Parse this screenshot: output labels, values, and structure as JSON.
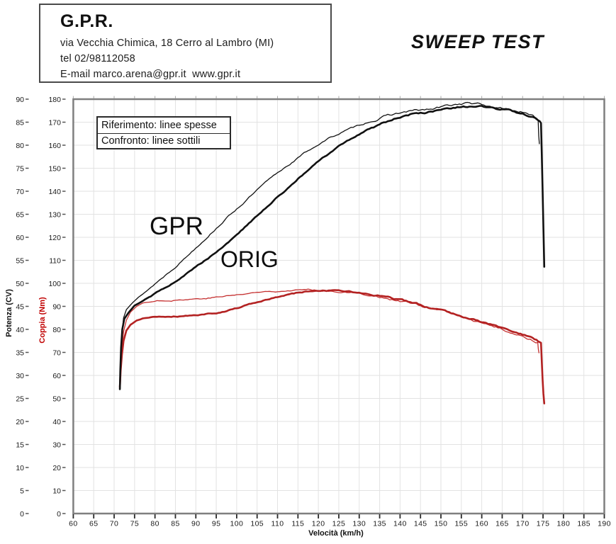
{
  "header": {
    "company": "G.P.R.",
    "address": "via Vecchia Chimica, 18 Cerro al Lambro (MI)",
    "phone": "tel 02/98112058",
    "email_web": "E-mail marco.arena@gpr.it  www.gpr.it"
  },
  "title": "SWEEP TEST",
  "legend": {
    "rows": [
      "Riferimento: linee spesse",
      "Confronto: linee sottili"
    ]
  },
  "annotations": [
    {
      "text": "GPR"
    },
    {
      "text": "ORIG"
    }
  ],
  "chart_data": {
    "type": "line",
    "title": "SWEEP TEST",
    "xlabel": "Velocità (km/h)",
    "ylabel_power": "Potenza (CV)",
    "ylabel_torque": "Coppia (Nm)",
    "x_axis": {
      "range": [
        60,
        190
      ],
      "tick_step": 5,
      "ticks": [
        60,
        65,
        70,
        75,
        80,
        85,
        90,
        95,
        100,
        105,
        110,
        115,
        120,
        125,
        130,
        135,
        140,
        145,
        150,
        155,
        160,
        165,
        170,
        175,
        180,
        185,
        190
      ]
    },
    "power_axis": {
      "range": [
        0,
        90
      ],
      "tick_step": 5,
      "ticks": [
        0,
        5,
        10,
        15,
        20,
        25,
        30,
        35,
        40,
        45,
        50,
        55,
        60,
        65,
        70,
        75,
        80,
        85,
        90
      ]
    },
    "torque_axis": {
      "range": [
        0,
        180
      ],
      "tick_step": 10,
      "ticks": [
        0,
        10,
        20,
        30,
        40,
        50,
        60,
        70,
        80,
        90,
        100,
        110,
        120,
        130,
        140,
        150,
        160,
        170,
        180
      ]
    },
    "grid": true,
    "colors": {
      "power": "#111111",
      "torque": "#b32222",
      "torque_thin": "#c53030",
      "grid": "#e2e2e2",
      "frame": "#7f7f7f"
    },
    "series": [
      {
        "name": "power-reference-orig",
        "label": "ORIG",
        "unit": "CV",
        "axis": "power",
        "style": "thick",
        "points": [
          [
            71.4,
            27
          ],
          [
            71.5,
            31
          ],
          [
            71.7,
            36
          ],
          [
            72.0,
            40
          ],
          [
            72.5,
            42.3
          ],
          [
            73.5,
            43.6
          ],
          [
            75,
            45.2
          ],
          [
            77,
            46.2
          ],
          [
            79,
            47.2
          ],
          [
            81,
            48.3
          ],
          [
            83,
            49.4
          ],
          [
            85,
            50.5
          ],
          [
            87,
            51.7
          ],
          [
            89,
            52.9
          ],
          [
            91,
            54.2
          ],
          [
            93,
            55.5
          ],
          [
            95,
            56.9
          ],
          [
            97,
            58.3
          ],
          [
            99,
            59.8
          ],
          [
            101,
            61.4
          ],
          [
            103,
            63.0
          ],
          [
            105,
            64.6
          ],
          [
            107,
            66.2
          ],
          [
            109,
            67.9
          ],
          [
            111,
            69.5
          ],
          [
            113,
            71.1
          ],
          [
            115,
            72.7
          ],
          [
            117,
            74.2
          ],
          [
            119,
            75.7
          ],
          [
            121,
            77.1
          ],
          [
            123,
            78.4
          ],
          [
            125,
            79.7
          ],
          [
            127,
            80.9
          ],
          [
            129,
            81.9
          ],
          [
            131,
            82.9
          ],
          [
            133,
            83.8
          ],
          [
            135,
            84.6
          ],
          [
            137,
            85.3
          ],
          [
            139,
            85.9
          ],
          [
            141,
            86.4
          ],
          [
            143,
            86.8
          ],
          [
            145,
            87.0
          ],
          [
            147,
            87.2
          ],
          [
            149,
            87.4
          ],
          [
            151,
            87.7
          ],
          [
            153,
            87.9
          ],
          [
            155,
            88.1
          ],
          [
            157,
            88.3
          ],
          [
            158.5,
            88.5
          ],
          [
            160,
            88.3
          ],
          [
            162,
            88.0
          ],
          [
            164,
            87.7
          ],
          [
            166,
            87.5
          ],
          [
            168,
            87.3
          ],
          [
            170,
            86.9
          ],
          [
            171.5,
            86.4
          ],
          [
            173,
            85.8
          ],
          [
            174.2,
            85.2
          ],
          [
            174.5,
            84.8
          ],
          [
            174.7,
            78
          ],
          [
            174.9,
            70
          ],
          [
            175.1,
            62
          ],
          [
            175.3,
            53.6
          ]
        ]
      },
      {
        "name": "power-comparison-gpr",
        "label": "GPR",
        "unit": "CV",
        "axis": "power",
        "style": "thin",
        "points": [
          [
            71.45,
            27.5
          ],
          [
            71.6,
            33
          ],
          [
            71.9,
            39
          ],
          [
            72.3,
            42.5
          ],
          [
            73,
            44.3
          ],
          [
            74.5,
            45.8
          ],
          [
            76,
            47.0
          ],
          [
            78,
            48.4
          ],
          [
            80,
            49.9
          ],
          [
            82,
            51.4
          ],
          [
            84,
            52.9
          ],
          [
            86,
            54.5
          ],
          [
            88,
            56.1
          ],
          [
            90,
            57.8
          ],
          [
            92,
            59.5
          ],
          [
            94,
            61.2
          ],
          [
            96,
            62.9
          ],
          [
            98,
            64.6
          ],
          [
            100,
            66.2
          ],
          [
            102,
            67.8
          ],
          [
            104,
            69.4
          ],
          [
            106,
            71.0
          ],
          [
            108,
            72.5
          ],
          [
            110,
            73.9
          ],
          [
            112,
            75.3
          ],
          [
            114,
            76.6
          ],
          [
            116,
            77.9
          ],
          [
            118,
            79.1
          ],
          [
            120,
            80.2
          ],
          [
            122,
            81.2
          ],
          [
            124,
            82.1
          ],
          [
            126,
            82.9
          ],
          [
            128,
            83.6
          ],
          [
            130,
            84.3
          ],
          [
            132,
            85.0
          ],
          [
            134,
            85.6
          ],
          [
            136,
            86.1
          ],
          [
            138,
            86.6
          ],
          [
            140,
            87.0
          ],
          [
            142,
            87.3
          ],
          [
            144,
            87.5
          ],
          [
            146,
            87.6
          ],
          [
            148,
            87.8
          ],
          [
            150,
            88.2
          ],
          [
            152,
            88.6
          ],
          [
            154,
            88.9
          ],
          [
            156,
            89.1
          ],
          [
            157,
            89.2
          ],
          [
            158,
            89.0
          ],
          [
            160,
            88.7
          ],
          [
            162,
            88.4
          ],
          [
            164,
            88.1
          ],
          [
            166,
            87.9
          ],
          [
            168,
            87.6
          ],
          [
            169.5,
            87.3
          ],
          [
            171,
            86.7
          ],
          [
            172.5,
            86.2
          ],
          [
            173.5,
            85.8
          ],
          [
            173.8,
            85.4
          ],
          [
            173.95,
            82
          ],
          [
            174.1,
            80.3
          ]
        ]
      },
      {
        "name": "torque-reference-orig",
        "label": "ORIG",
        "unit": "Nm",
        "axis": "torque",
        "style": "thick",
        "points": [
          [
            71.4,
            55
          ],
          [
            71.6,
            62
          ],
          [
            71.9,
            69
          ],
          [
            72.3,
            75
          ],
          [
            73,
            79.5
          ],
          [
            74,
            82
          ],
          [
            75.5,
            83.8
          ],
          [
            77,
            84.7
          ],
          [
            79,
            85.3
          ],
          [
            81,
            85.6
          ],
          [
            83,
            85.7
          ],
          [
            85,
            85.8
          ],
          [
            87,
            85.9
          ],
          [
            89,
            86.1
          ],
          [
            91,
            86.4
          ],
          [
            93,
            86.8
          ],
          [
            95,
            87.3
          ],
          [
            97,
            88.0
          ],
          [
            99,
            88.8
          ],
          [
            101,
            89.7
          ],
          [
            103,
            90.7
          ],
          [
            105,
            91.7
          ],
          [
            107,
            92.7
          ],
          [
            109,
            93.6
          ],
          [
            111,
            94.5
          ],
          [
            113,
            95.2
          ],
          [
            115,
            95.9
          ],
          [
            117,
            96.4
          ],
          [
            119,
            96.7
          ],
          [
            121,
            96.9
          ],
          [
            123,
            96.9
          ],
          [
            125,
            96.8
          ],
          [
            127,
            96.5
          ],
          [
            129,
            96.1
          ],
          [
            131,
            95.6
          ],
          [
            133,
            95.1
          ],
          [
            135,
            94.5
          ],
          [
            137,
            93.8
          ],
          [
            139,
            93.1
          ],
          [
            141,
            92.3
          ],
          [
            143,
            91.5
          ],
          [
            145,
            90.7
          ],
          [
            147,
            89.8
          ],
          [
            149,
            88.9
          ],
          [
            151,
            88.0
          ],
          [
            153,
            87.0
          ],
          [
            155,
            86.0
          ],
          [
            157,
            85.0
          ],
          [
            159,
            83.9
          ],
          [
            161,
            82.8
          ],
          [
            163,
            81.7
          ],
          [
            165,
            80.6
          ],
          [
            167,
            79.4
          ],
          [
            169,
            78.2
          ],
          [
            171,
            76.9
          ],
          [
            172.5,
            75.9
          ],
          [
            173.8,
            74.8
          ],
          [
            174.5,
            74.2
          ],
          [
            174.7,
            66
          ],
          [
            174.9,
            58
          ],
          [
            175.1,
            52
          ],
          [
            175.3,
            47.8
          ]
        ]
      },
      {
        "name": "torque-comparison-gpr",
        "label": "GPR",
        "unit": "Nm",
        "axis": "torque",
        "style": "thin",
        "points": [
          [
            71.45,
            56
          ],
          [
            71.6,
            64
          ],
          [
            71.9,
            72
          ],
          [
            72.3,
            79
          ],
          [
            73,
            84
          ],
          [
            74,
            87.5
          ],
          [
            75.5,
            90
          ],
          [
            77,
            91.4
          ],
          [
            79,
            92.2
          ],
          [
            81,
            92.6
          ],
          [
            83,
            92.8
          ],
          [
            85,
            92.9
          ],
          [
            87,
            93.0
          ],
          [
            89,
            93.2
          ],
          [
            91,
            93.4
          ],
          [
            93,
            93.7
          ],
          [
            95,
            94.0
          ],
          [
            97,
            94.4
          ],
          [
            99,
            94.8
          ],
          [
            101,
            95.2
          ],
          [
            103,
            95.6
          ],
          [
            105,
            96.0
          ],
          [
            107,
            96.4
          ],
          [
            109,
            96.7
          ],
          [
            111,
            96.9
          ],
          [
            113,
            97.1
          ],
          [
            115,
            97.2
          ],
          [
            117,
            97.2
          ],
          [
            119,
            97.1
          ],
          [
            121,
            97.0
          ],
          [
            123,
            96.8
          ],
          [
            125,
            96.5
          ],
          [
            127,
            96.2
          ],
          [
            129,
            95.8
          ],
          [
            131,
            95.3
          ],
          [
            133,
            94.7
          ],
          [
            135,
            94.1
          ],
          [
            137,
            93.4
          ],
          [
            139,
            92.7
          ],
          [
            141,
            91.9
          ],
          [
            143,
            91.1
          ],
          [
            145,
            90.2
          ],
          [
            147,
            89.3
          ],
          [
            149,
            88.4
          ],
          [
            151,
            87.4
          ],
          [
            153,
            86.4
          ],
          [
            155,
            85.4
          ],
          [
            157,
            84.4
          ],
          [
            159,
            83.3
          ],
          [
            161,
            82.2
          ],
          [
            163,
            81.1
          ],
          [
            165,
            80.0
          ],
          [
            167,
            78.8
          ],
          [
            169,
            77.6
          ],
          [
            171,
            76.3
          ],
          [
            172.3,
            75.4
          ],
          [
            173.3,
            74.7
          ],
          [
            173.7,
            74.4
          ],
          [
            173.85,
            71.5
          ],
          [
            174.0,
            69.8
          ]
        ]
      }
    ]
  }
}
